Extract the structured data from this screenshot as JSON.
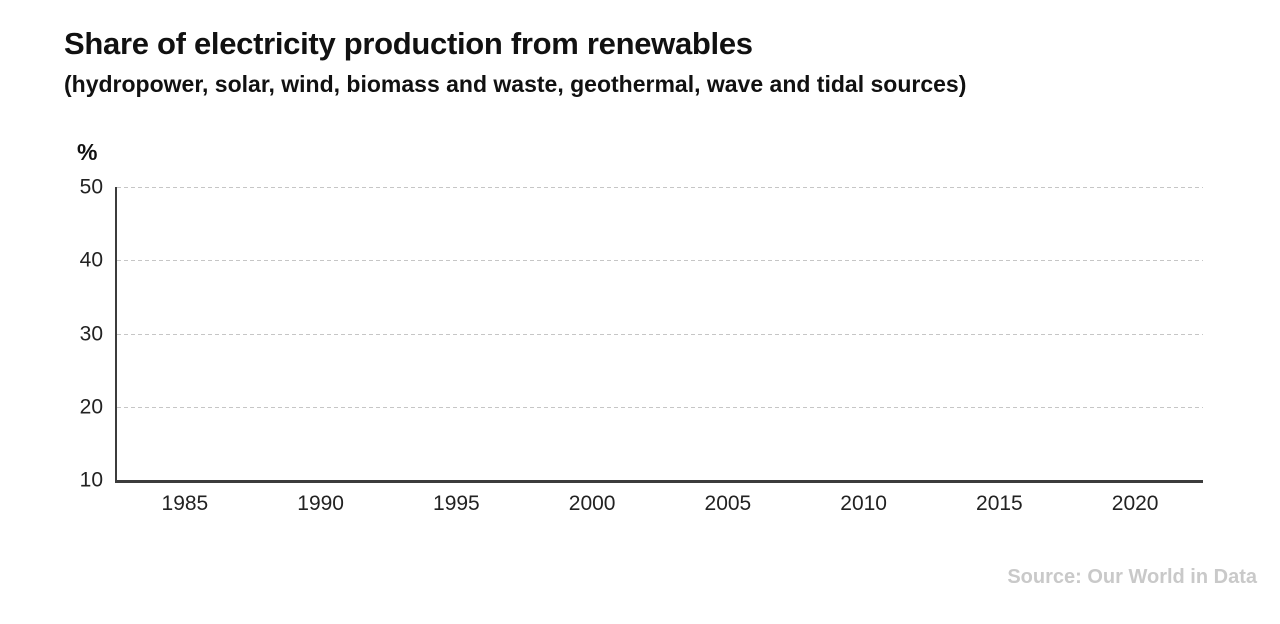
{
  "header": {
    "title": "Share of electricity production from renewables",
    "subtitle": "(hydropower, solar, wind, biomass and waste, geothermal, wave and tidal sources)"
  },
  "chart_data": {
    "type": "line",
    "title": "Share of electricity production from renewables",
    "subtitle": "(hydropower, solar, wind, biomass and waste, geothermal, wave and tidal sources)",
    "xlabel": "",
    "ylabel": "%",
    "ylim": [
      10,
      50
    ],
    "xlim": [
      1982.5,
      2022.5
    ],
    "y_ticks": [
      50,
      40,
      30,
      20,
      10
    ],
    "x_ticks": [
      1985,
      1990,
      1995,
      2000,
      2005,
      2010,
      2015,
      2020
    ],
    "grid": "horizontal dashed gridlines at each y tick; solid bottom axis at y=10",
    "legend": "none",
    "series": [],
    "note": "axes frame only — no data series plotted in this frame"
  },
  "source": {
    "label": "Source: Our World in Data"
  },
  "colors": {
    "title_text": "#111111",
    "tick_text": "#222222",
    "axis_line": "#3c3c3c",
    "gridline": "#c6c6c6",
    "source_text": "#c9c9c9",
    "background": "#ffffff"
  }
}
